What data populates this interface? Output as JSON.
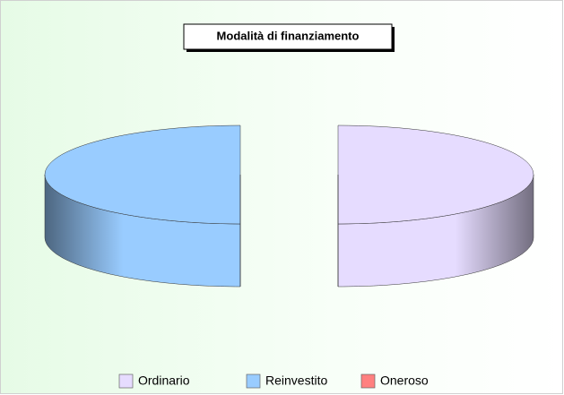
{
  "chart_data": {
    "type": "pie3d",
    "title": "Modalità di finanziamento",
    "categories": [
      "Ordinario",
      "Reinvestito",
      "Oneroso"
    ],
    "values": [
      50,
      50,
      0
    ],
    "colors": [
      "#e6dcff",
      "#99ccff",
      "#ff8080"
    ],
    "legend": "bottom"
  }
}
